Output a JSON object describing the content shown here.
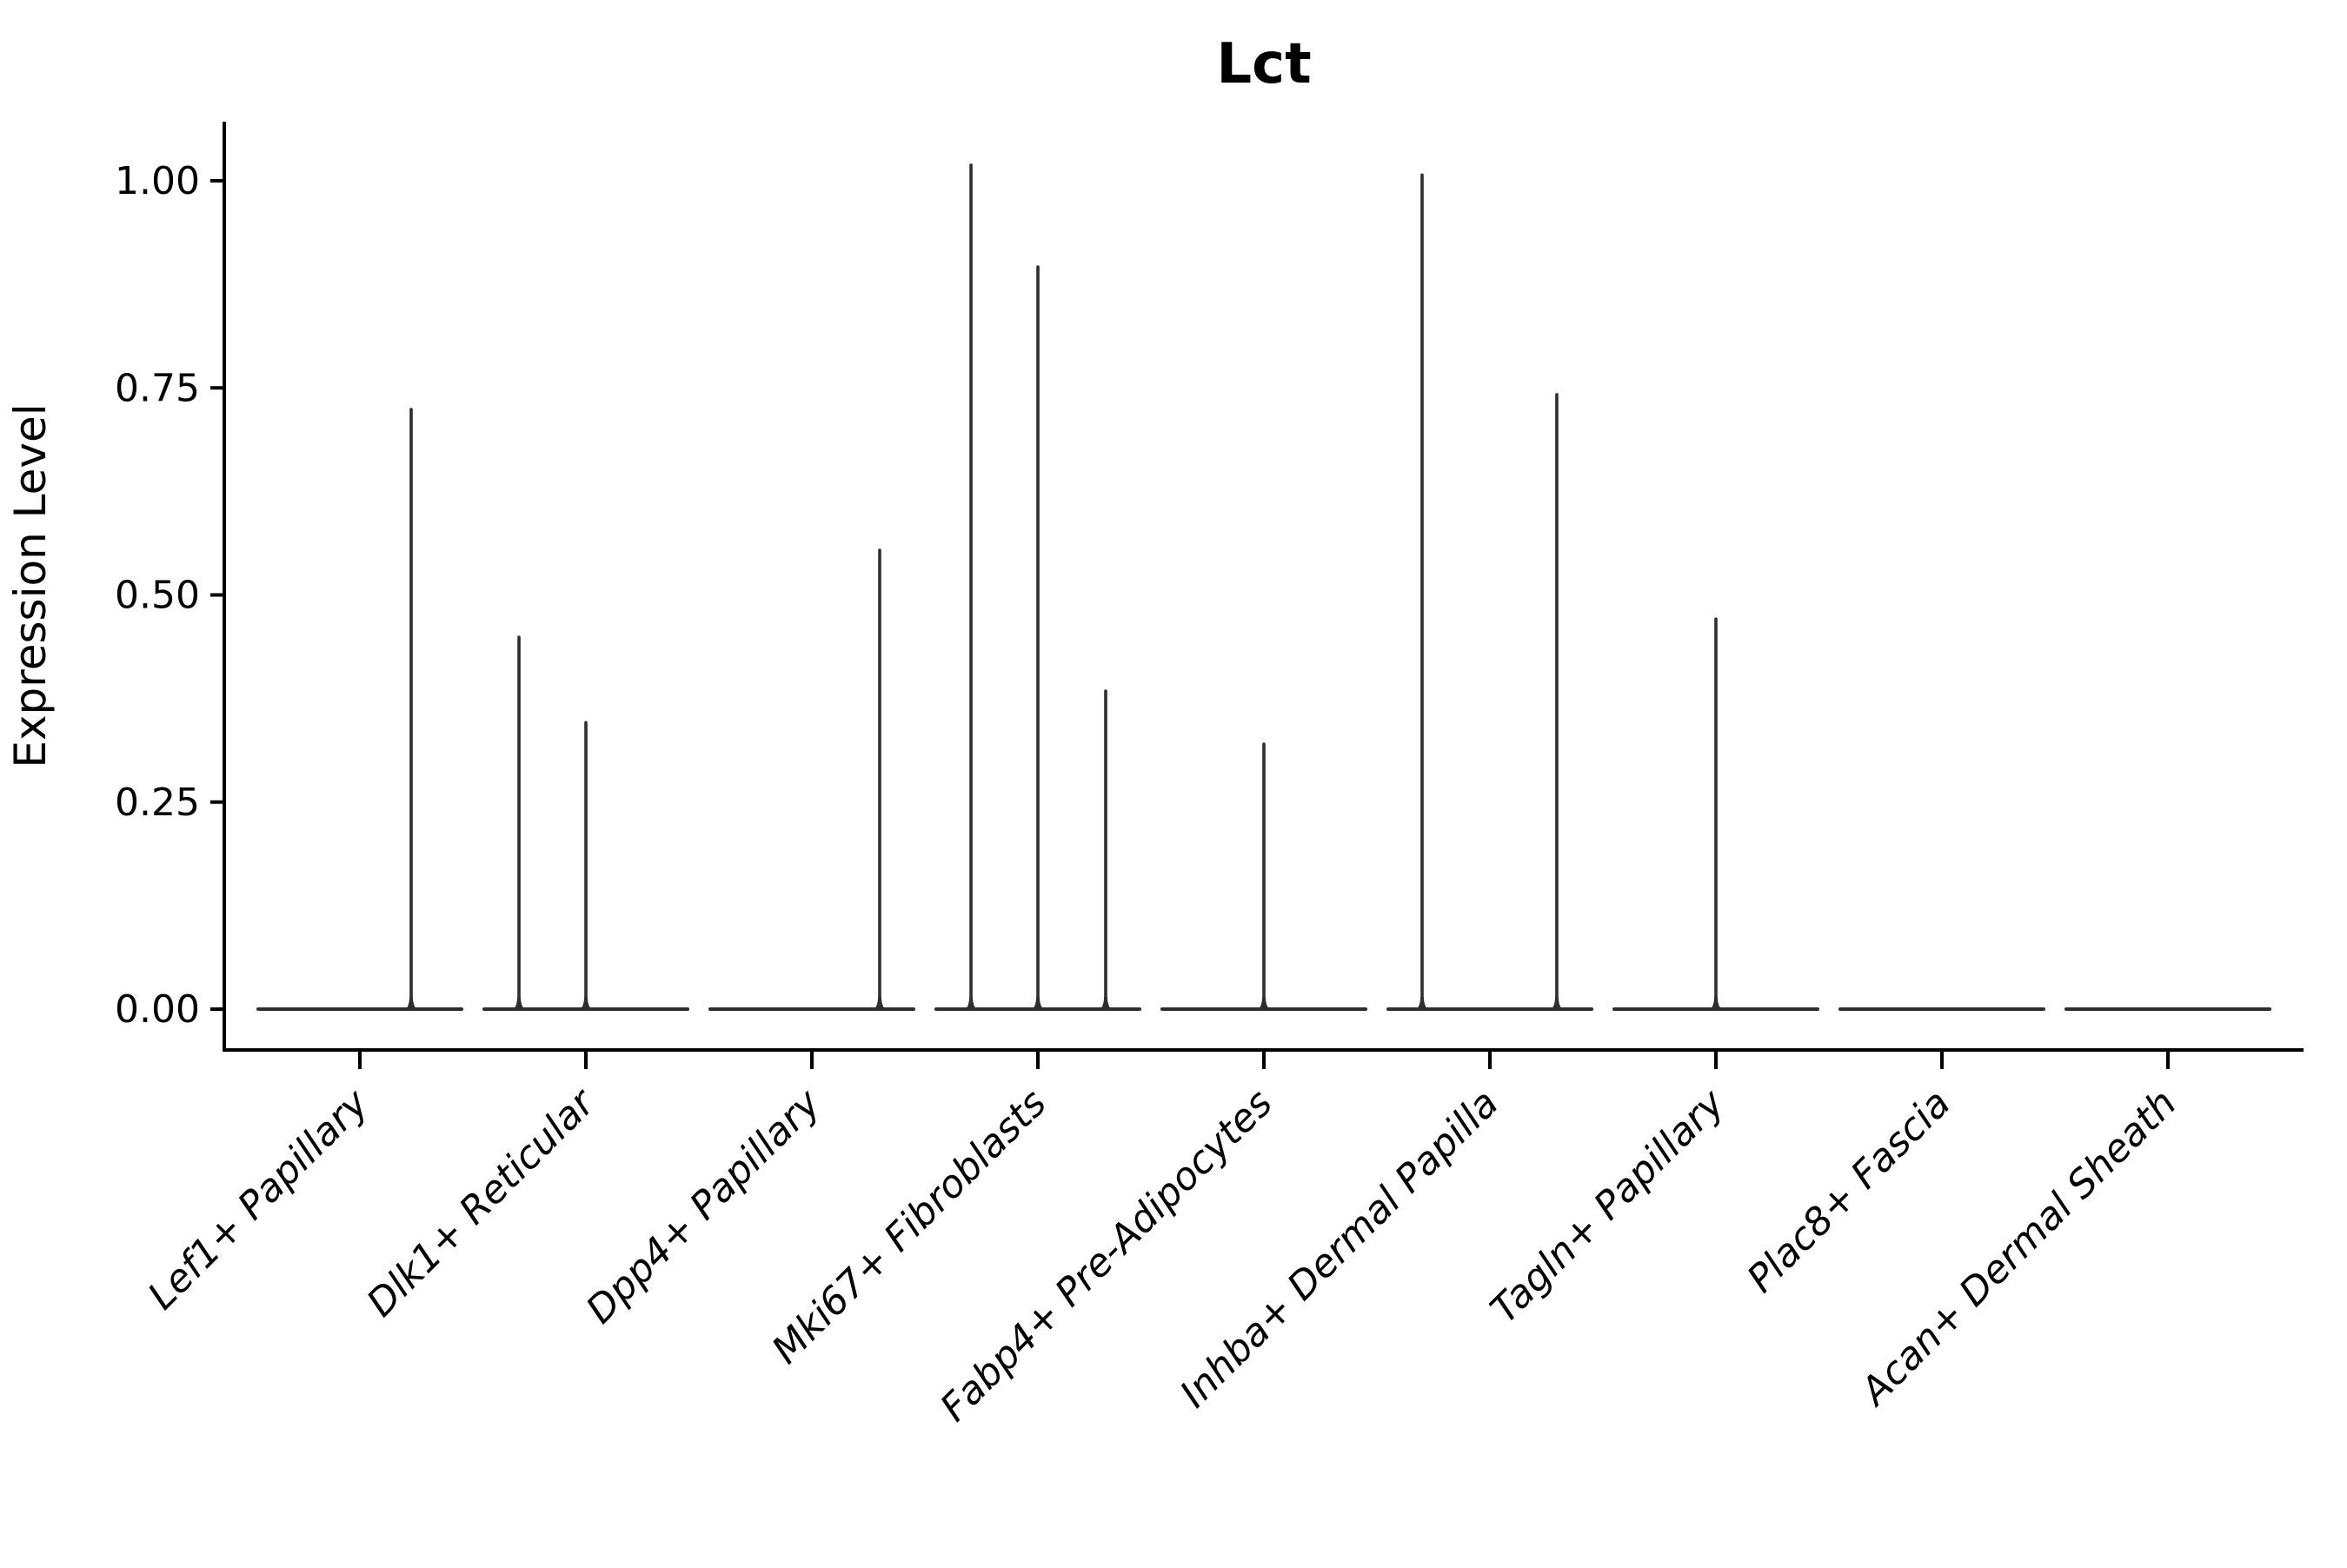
{
  "figure": {
    "background": "#ffffff",
    "spine_color": "#000000",
    "violin_color": "#2e2e2e",
    "text_color": "#000000"
  },
  "chart_data": {
    "type": "violin",
    "title": "Lct",
    "xlabel": "",
    "ylabel": "Expression Level",
    "grid": false,
    "legend": "none",
    "ylim": [
      -0.049,
      1.071
    ],
    "yticks": [
      0.0,
      0.25,
      0.5,
      0.75,
      1.0
    ],
    "ytick_labels": [
      "0.00",
      "0.25",
      "0.50",
      "0.75",
      "1.00"
    ],
    "categories": [
      "Lef1+ Papillary",
      "Dlk1+ Reticular",
      "Dpp4+ Papillary",
      "Mki67+ Fibroblasts",
      "Fabp4+ Pre-Adipocytes",
      "Inhba+ Dermal Papilla",
      "Tagln+ Papillary",
      "Plac8+ Fascia",
      "Acan+ Dermal Sheath"
    ],
    "baseline_value": 0.0,
    "baseline_halfwidth": 0.45,
    "series": [
      {
        "category": "Lef1+ Papillary",
        "spikes": [
          {
            "dx": 0.227,
            "value": 0.724
          }
        ]
      },
      {
        "category": "Dlk1+ Reticular",
        "spikes": [
          {
            "dx": -0.296,
            "value": 0.449
          },
          {
            "dx": 0.0,
            "value": 0.346
          }
        ]
      },
      {
        "category": "Dpp4+ Papillary",
        "spikes": [
          {
            "dx": 0.3,
            "value": 0.554
          }
        ]
      },
      {
        "category": "Mki67+ Fibroblasts",
        "spikes": [
          {
            "dx": -0.296,
            "value": 1.019
          },
          {
            "dx": 0.0,
            "value": 0.896
          },
          {
            "dx": 0.3,
            "value": 0.384
          }
        ]
      },
      {
        "category": "Fabp4+ Pre-Adipocytes",
        "spikes": [
          {
            "dx": 0.0,
            "value": 0.32
          }
        ]
      },
      {
        "category": "Inhba+ Dermal Papilla",
        "spikes": [
          {
            "dx": -0.3,
            "value": 1.007
          },
          {
            "dx": 0.296,
            "value": 0.742
          }
        ]
      },
      {
        "category": "Tagln+ Papillary",
        "spikes": [
          {
            "dx": 0.0,
            "value": 0.471
          }
        ]
      },
      {
        "category": "Plac8+ Fascia",
        "spikes": []
      },
      {
        "category": "Acan+ Dermal Sheath",
        "spikes": []
      }
    ]
  }
}
